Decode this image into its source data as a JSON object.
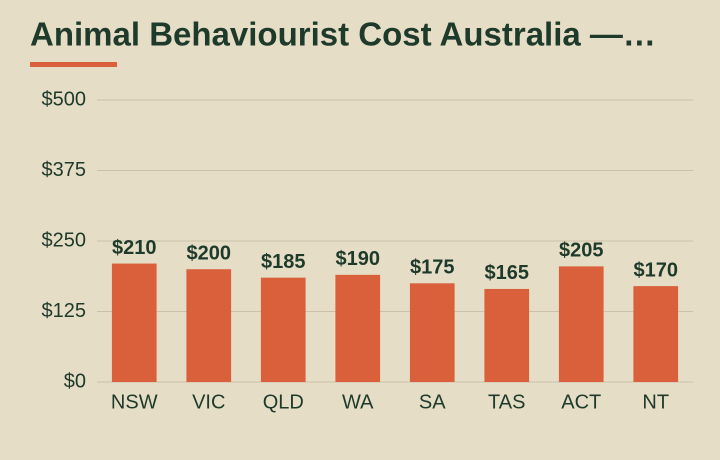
{
  "chart_data": {
    "type": "bar",
    "title": "Animal Behaviourist Cost Australia —…",
    "categories": [
      "NSW",
      "VIC",
      "QLD",
      "WA",
      "SA",
      "TAS",
      "ACT",
      "NT"
    ],
    "values": [
      210,
      200,
      185,
      190,
      175,
      165,
      205,
      170
    ],
    "value_labels": [
      "$210",
      "$200",
      "$185",
      "$190",
      "$175",
      "$165",
      "$205",
      "$170"
    ],
    "color": "#d9603b",
    "ylim": [
      0,
      500
    ],
    "yticks": [
      {
        "value": 0,
        "label": "$0"
      },
      {
        "value": 125,
        "label": "$125"
      },
      {
        "value": 250,
        "label": "$250"
      },
      {
        "value": 375,
        "label": "$375"
      },
      {
        "value": 500,
        "label": "$500"
      }
    ],
    "grid": true
  }
}
